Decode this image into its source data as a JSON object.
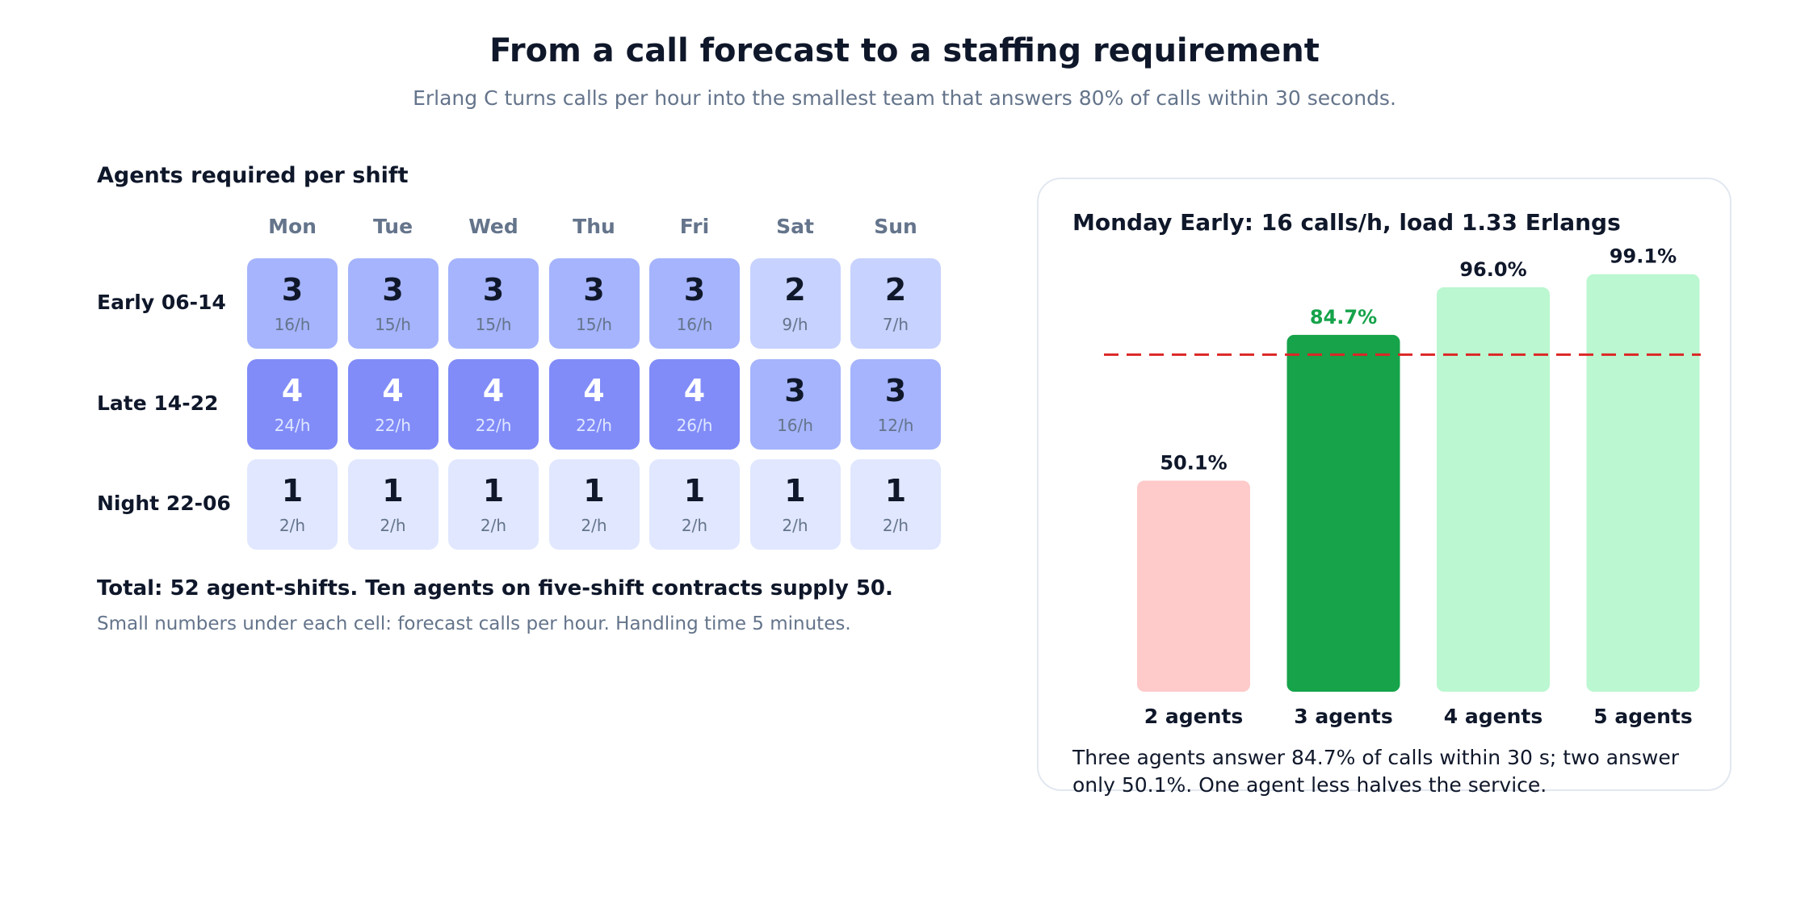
{
  "title": "From a call forecast to a staffing requirement",
  "subtitle": "Erlang C turns calls per hour into the smallest team that answers 80% of calls within 30 seconds.",
  "heatmap": {
    "heading": "Agents required per shift",
    "days": [
      "Mon",
      "Tue",
      "Wed",
      "Thu",
      "Fri",
      "Sat",
      "Sun"
    ],
    "shifts": [
      {
        "label": "Early 06-14",
        "agents": [
          3,
          3,
          3,
          3,
          3,
          2,
          2
        ],
        "calls": [
          "16/h",
          "15/h",
          "15/h",
          "15/h",
          "16/h",
          "9/h",
          "7/h"
        ]
      },
      {
        "label": "Late 14-22",
        "agents": [
          4,
          4,
          4,
          4,
          4,
          3,
          3
        ],
        "calls": [
          "24/h",
          "22/h",
          "22/h",
          "22/h",
          "26/h",
          "16/h",
          "12/h"
        ]
      },
      {
        "label": "Night 22-06",
        "agents": [
          1,
          1,
          1,
          1,
          1,
          1,
          1
        ],
        "calls": [
          "2/h",
          "2/h",
          "2/h",
          "2/h",
          "2/h",
          "2/h",
          "2/h"
        ]
      }
    ],
    "colors": {
      "1": "#e0e7ff",
      "2": "#c7d2fe",
      "3": "#a5b4fc",
      "4": "#818cf8"
    },
    "total_text": "Total: 52 agent-shifts. Ten agents on five-shift contracts supply 50.",
    "footnote": "Small numbers under each cell: forecast calls per hour. Handling time 5 minutes."
  },
  "chart_panel": {
    "title": "Monday Early: 16 calls/h, load 1.33 Erlangs",
    "caption": "Three agents answer 84.7% of calls within 30 s; two answer only 50.1%. One agent less halves the service."
  },
  "chart_data": {
    "type": "bar",
    "categories": [
      "2 agents",
      "3 agents",
      "4 agents",
      "5 agents"
    ],
    "values": [
      50.1,
      84.7,
      96.0,
      99.1
    ],
    "value_labels": [
      "50.1%",
      "84.7%",
      "96.0%",
      "99.1%"
    ],
    "target_line": 80,
    "ylim": [
      0,
      100
    ],
    "bar_colors": [
      "#fecaca",
      "#16a34a",
      "#bbf7d0",
      "#bbf7d0"
    ],
    "label_colors": [
      "#0f172a",
      "#16a34a",
      "#0f172a",
      "#0f172a"
    ],
    "target_color": "#dc2626"
  }
}
